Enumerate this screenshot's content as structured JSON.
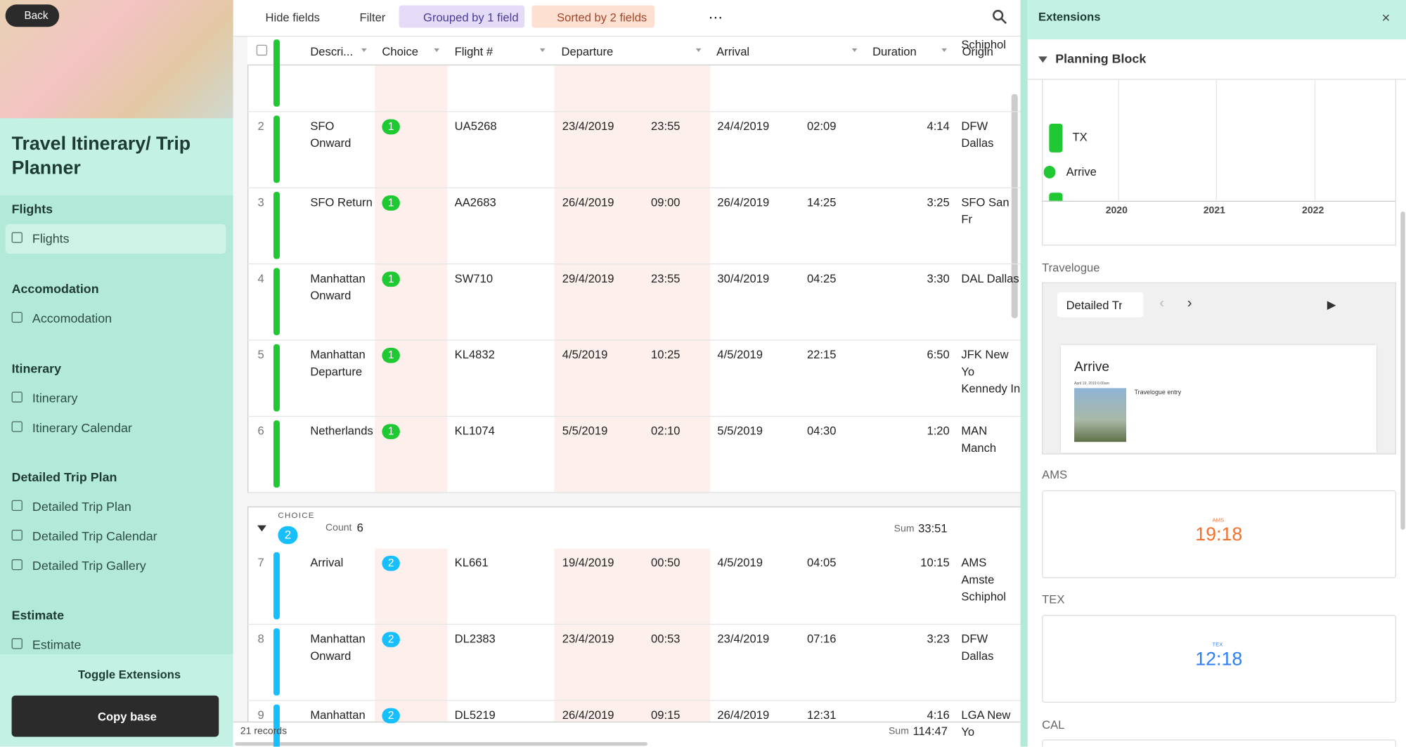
{
  "sidebar": {
    "back": "Back",
    "title": "Travel Itinerary/ Trip Planner",
    "sections": [
      {
        "title": "Flights",
        "items": [
          "Flights"
        ]
      },
      {
        "title": "Accomodation",
        "items": [
          "Accomodation"
        ]
      },
      {
        "title": "Itinerary",
        "items": [
          "Itinerary",
          "Itinerary Calendar"
        ]
      },
      {
        "title": "Detailed Trip Plan",
        "items": [
          "Detailed Trip Plan",
          "Detailed Trip Calendar",
          "Detailed Trip Gallery"
        ]
      },
      {
        "title": "Estimate",
        "items": [
          "Estimate"
        ]
      }
    ],
    "toggle": "Toggle Extensions",
    "copy": "Copy base"
  },
  "toolbar": [
    "Hide fields",
    "Filter",
    "Grouped by 1 field",
    "Sorted by 2 fields"
  ],
  "table": {
    "columns": [
      "Descri...",
      "Choice",
      "Flight #",
      "Departure",
      "Arrival",
      "Duration",
      "Origin"
    ],
    "rows": [
      {
        "origin": "Schiphol"
      },
      {
        "num": "2",
        "desc": "SFO Onward",
        "choice": "1",
        "flight": "UA5268",
        "dep_date": "23/4/2019",
        "dep_time": "23:55",
        "arr_date": "24/4/2019",
        "arr_time": "02:09",
        "duration": "4:14",
        "origin": "DFW Dallas"
      },
      {
        "num": "3",
        "desc": "SFO Return",
        "choice": "1",
        "flight": "AA2683",
        "dep_date": "26/4/2019",
        "dep_time": "09:00",
        "arr_date": "26/4/2019",
        "arr_time": "14:25",
        "duration": "3:25",
        "origin": "SFO San Fr"
      },
      {
        "num": "4",
        "desc": "Manhattan Onward",
        "choice": "1",
        "flight": "SW710",
        "dep_date": "29/4/2019",
        "dep_time": "23:55",
        "arr_date": "30/4/2019",
        "arr_time": "04:25",
        "duration": "3:30",
        "origin": "DAL Dallas"
      },
      {
        "num": "5",
        "desc": "Manhattan Departure",
        "choice": "1",
        "flight": "KL4832",
        "dep_date": "4/5/2019",
        "dep_time": "10:25",
        "arr_date": "4/5/2019",
        "arr_time": "22:15",
        "duration": "6:50",
        "origin": "JFK New Yo Kennedy In"
      },
      {
        "num": "6",
        "desc": "Netherlands",
        "choice": "1",
        "flight": "KL1074",
        "dep_date": "5/5/2019",
        "dep_time": "02:10",
        "arr_date": "5/5/2019",
        "arr_time": "04:30",
        "duration": "1:20",
        "origin": "MAN Manch"
      }
    ],
    "group": {
      "label": "CHOICE",
      "badge": "2",
      "count_label": "Count",
      "count": "6",
      "sum_label": "Sum",
      "sum": "33:51"
    },
    "rows2": [
      {
        "num": "7",
        "desc": "Arrival",
        "choice": "2",
        "flight": "KL661",
        "dep_date": "19/4/2019",
        "dep_time": "00:50",
        "arr_date": "4/5/2019",
        "arr_time": "04:05",
        "duration": "10:15",
        "origin": "AMS Amste Schiphol"
      },
      {
        "num": "8",
        "desc": "Manhattan Onward",
        "choice": "2",
        "flight": "DL2383",
        "dep_date": "23/4/2019",
        "dep_time": "00:53",
        "arr_date": "23/4/2019",
        "arr_time": "07:16",
        "duration": "3:23",
        "origin": "DFW Dallas"
      },
      {
        "num": "9",
        "desc": "Manhattan",
        "choice": "2",
        "flight": "DL5219",
        "dep_date": "26/4/2019",
        "dep_time": "09:15",
        "arr_date": "26/4/2019",
        "arr_time": "12:31",
        "duration": "4:16",
        "origin": "LGA New Yo"
      }
    ],
    "footer": {
      "records": "21 records",
      "sum_label": "Sum",
      "sum": "114:47"
    }
  },
  "extensions": {
    "title": "Extensions",
    "planning": "Planning Block",
    "legend": [
      "TX",
      "Arrive"
    ],
    "years": [
      "2020",
      "2021",
      "2022"
    ],
    "travelogue": "Travelogue",
    "select": "Detailed Tr",
    "card_title": "Arrive",
    "card_date": "April 19, 2019 6:00am",
    "card_entry": "Travelogue entry",
    "clocks": [
      {
        "label": "AMS",
        "small": "AMS",
        "time": "19:18",
        "color": "#f5712d"
      },
      {
        "label": "TEX",
        "small": "TEX",
        "time": "12:18",
        "color": "#2d7ff9"
      }
    ],
    "cal": "CAL"
  }
}
